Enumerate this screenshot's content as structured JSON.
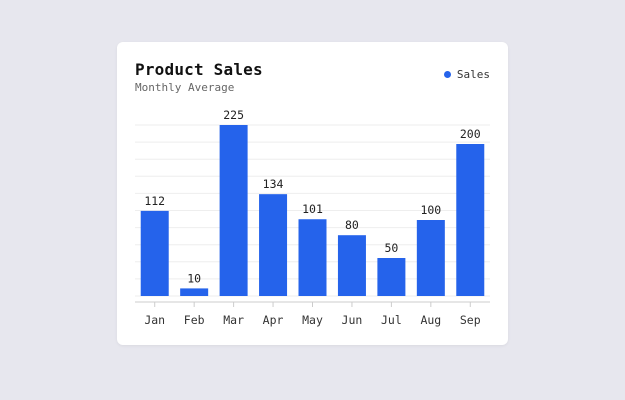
{
  "colors": {
    "bar": "#2563eb",
    "grid": "#eeeeee",
    "axis": "#cccccc"
  },
  "chart_data": {
    "type": "bar",
    "title": "Product Sales",
    "subtitle": "Monthly Average",
    "categories": [
      "Jan",
      "Feb",
      "Mar",
      "Apr",
      "May",
      "Jun",
      "Jul",
      "Aug",
      "Sep"
    ],
    "series": [
      {
        "name": "Sales",
        "values": [
          112,
          10,
          225,
          134,
          101,
          80,
          50,
          100,
          200
        ]
      }
    ],
    "ylim": [
      0,
      225
    ],
    "grid": true,
    "legend_position": "top-right",
    "data_labels": true
  }
}
